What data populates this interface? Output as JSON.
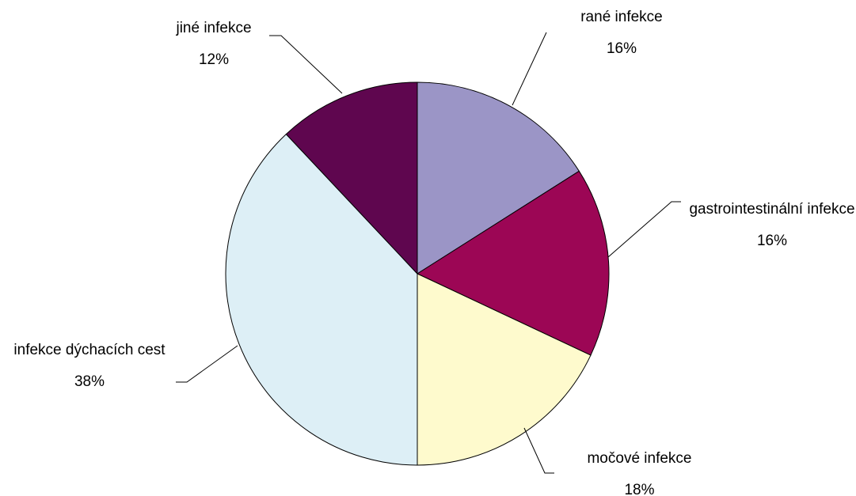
{
  "chart_data": {
    "type": "pie",
    "categories": [
      "rané infekce",
      "gastrointestinální infekce",
      "močové infekce",
      "infekce dýchacích cest",
      "jiné infekce"
    ],
    "values": [
      16,
      16,
      18,
      38,
      12
    ],
    "value_labels": [
      "16%",
      "16%",
      "18%",
      "38%",
      "12%"
    ],
    "colors": [
      "#9b95c6",
      "#9c0655",
      "#fefacd",
      "#ddeff6",
      "#5f064f"
    ]
  }
}
